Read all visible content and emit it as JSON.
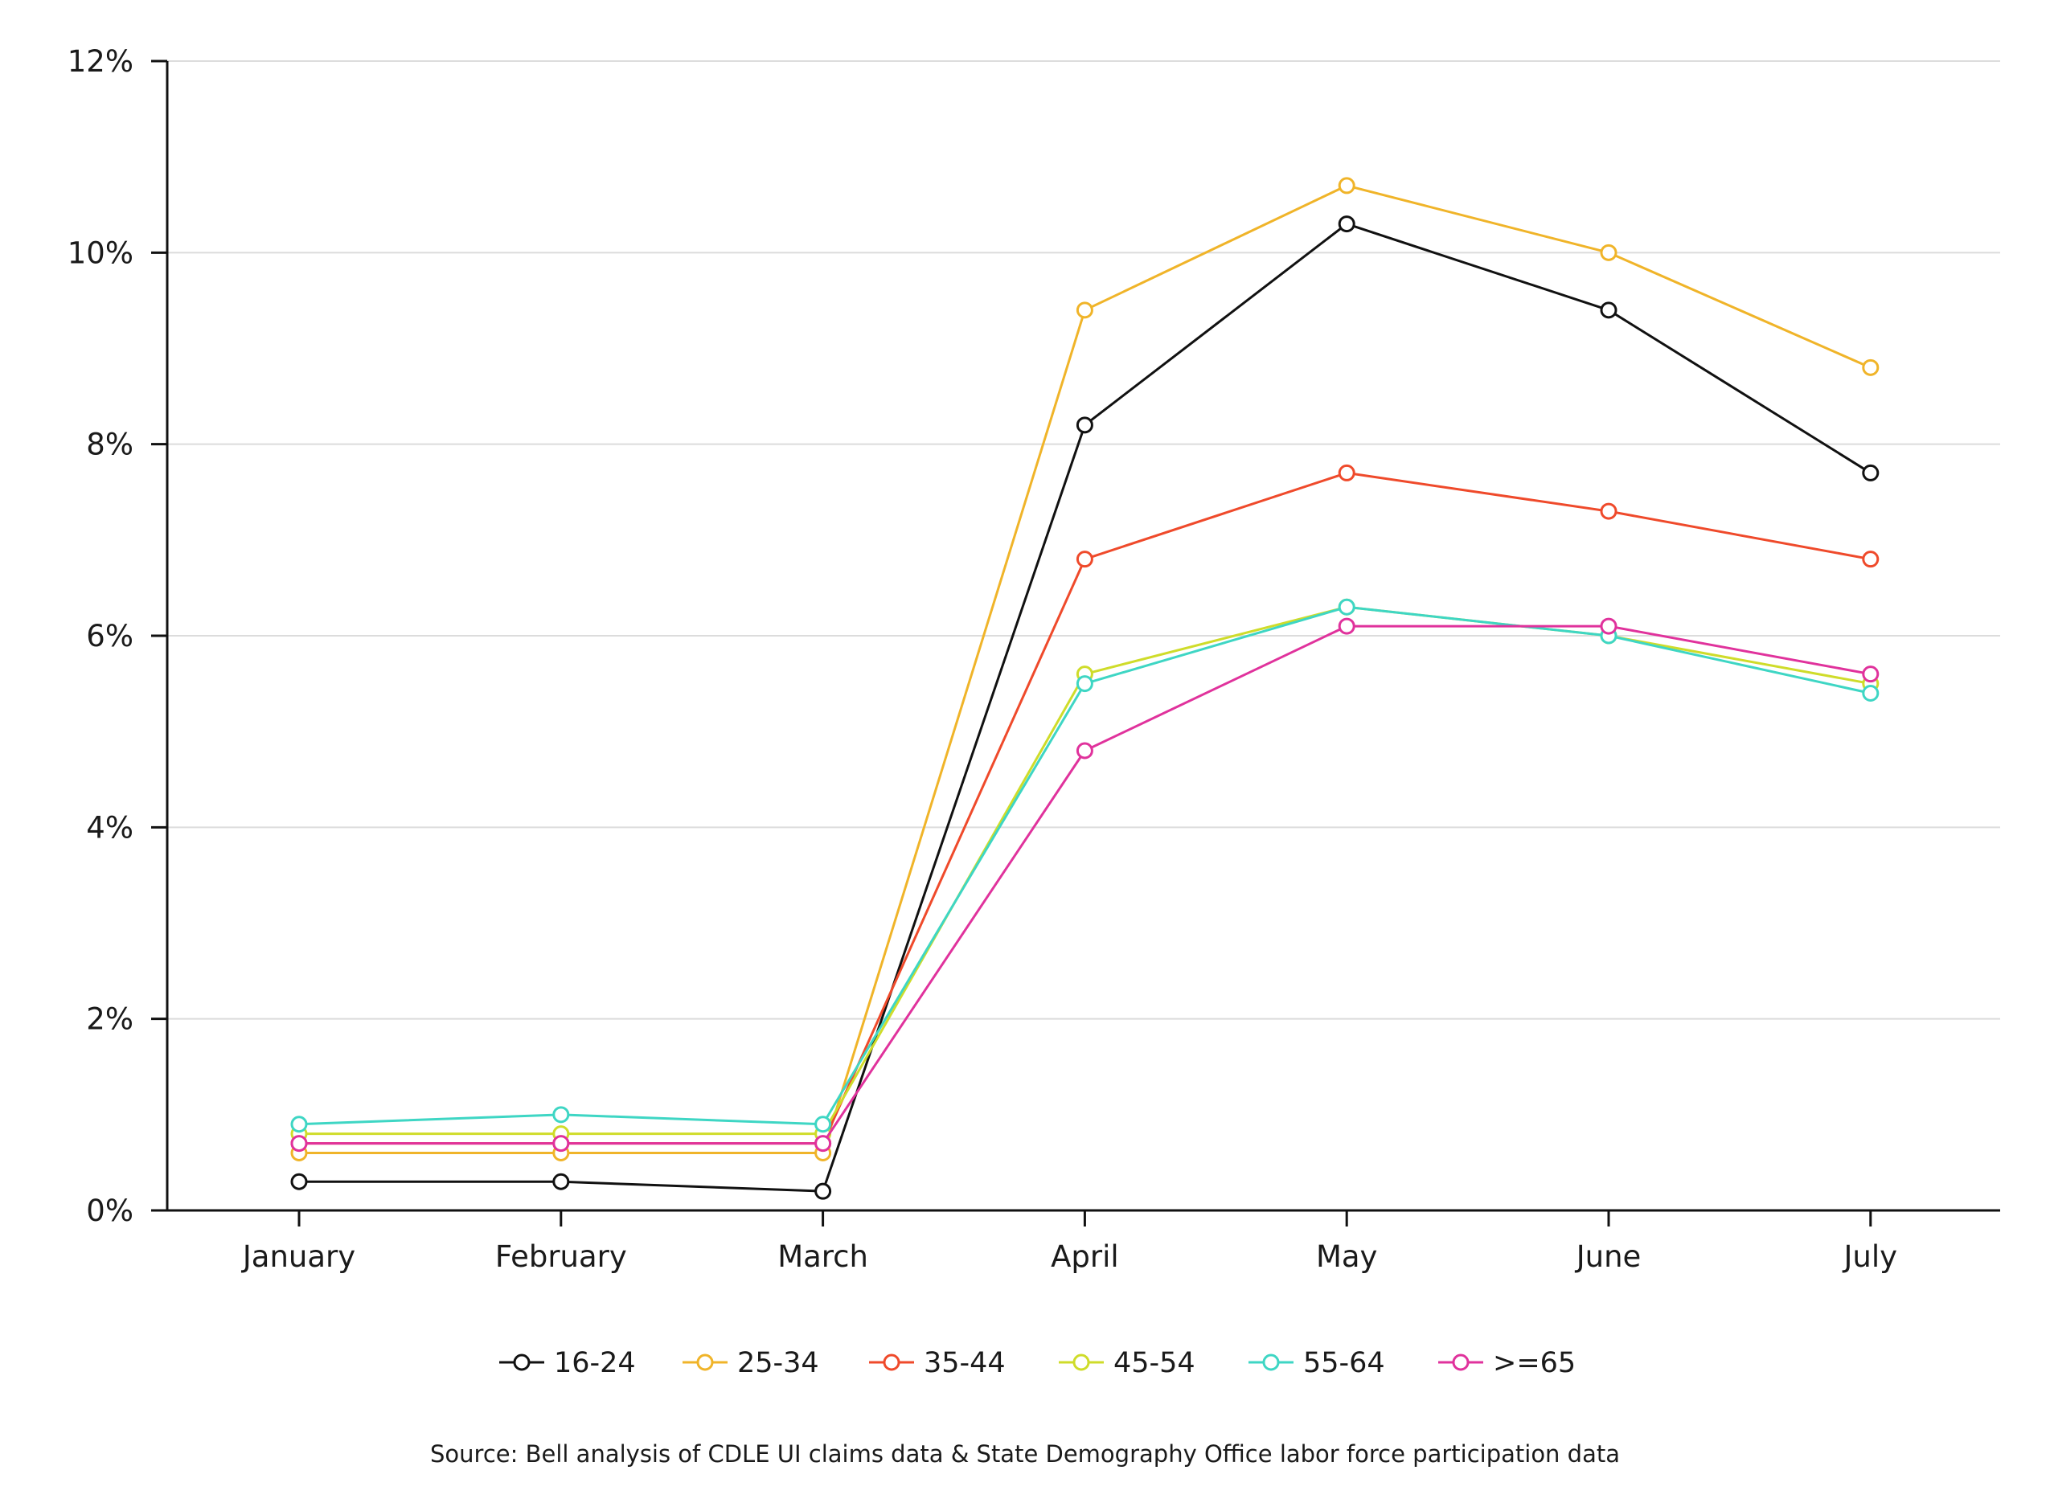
{
  "chart_data": {
    "type": "line",
    "title": "",
    "xlabel": "",
    "ylabel": "",
    "categories": [
      "January",
      "February",
      "March",
      "April",
      "May",
      "June",
      "July"
    ],
    "ylim": [
      0,
      12
    ],
    "yticks": [
      0,
      2,
      4,
      6,
      8,
      10,
      12
    ],
    "ytick_labels": [
      "0%",
      "2%",
      "4%",
      "6%",
      "8%",
      "10%",
      "12%"
    ],
    "grid": "horizontal",
    "legend_position": "bottom",
    "series": [
      {
        "name": "16-24",
        "color": "#111111",
        "values": [
          0.3,
          0.3,
          0.2,
          8.2,
          10.3,
          9.4,
          7.7
        ]
      },
      {
        "name": "25-34",
        "color": "#f0b429",
        "values": [
          0.6,
          0.6,
          0.6,
          9.4,
          10.7,
          10.0,
          8.8
        ]
      },
      {
        "name": "35-44",
        "color": "#ef4a2b",
        "values": [
          0.7,
          0.7,
          0.7,
          6.8,
          7.7,
          7.3,
          6.8
        ]
      },
      {
        "name": "45-54",
        "color": "#cfdc2a",
        "values": [
          0.8,
          0.8,
          0.8,
          5.6,
          6.3,
          6.0,
          5.5
        ]
      },
      {
        "name": "55-64",
        "color": "#3ed6c4",
        "values": [
          0.9,
          1.0,
          0.9,
          5.5,
          6.3,
          6.0,
          5.4
        ]
      },
      {
        "name": ">=65",
        "color": "#e0329c",
        "values": [
          0.7,
          0.7,
          0.7,
          4.8,
          6.1,
          6.1,
          5.6
        ]
      }
    ]
  },
  "source": "Source: Bell analysis of CDLE UI claims data & State Demography Office labor force participation data"
}
